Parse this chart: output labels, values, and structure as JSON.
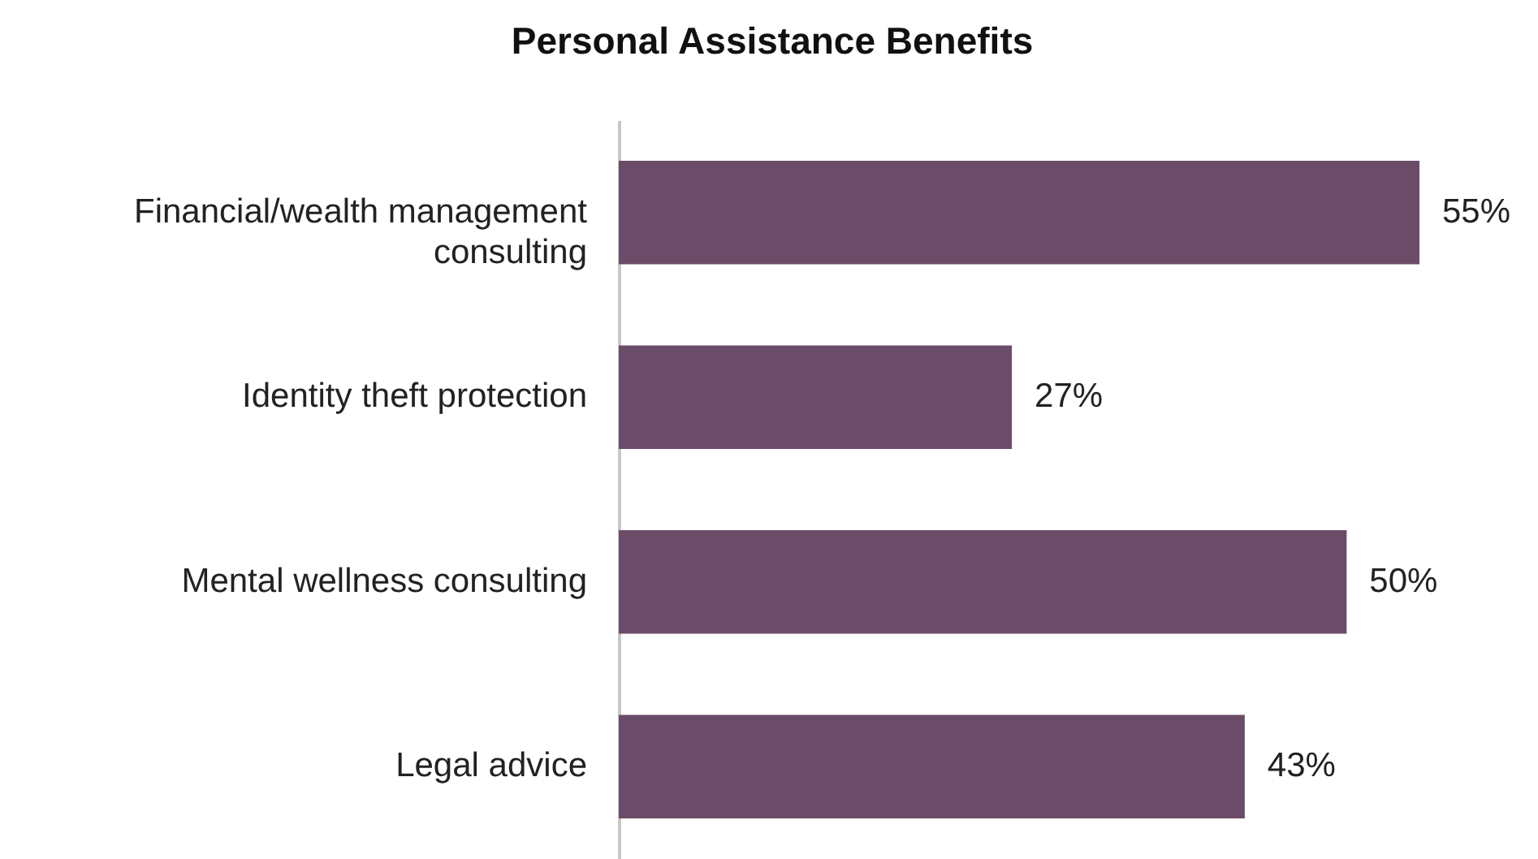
{
  "chart_data": {
    "type": "bar",
    "orientation": "horizontal",
    "title": "Personal Assistance Benefits",
    "categories": [
      "Financial/wealth management consulting",
      "Identity theft protection",
      "Mental wellness consulting",
      "Legal advice"
    ],
    "values": [
      55,
      27,
      50,
      43
    ],
    "value_labels": [
      "55%",
      "27%",
      "50%",
      "43%"
    ],
    "color": "#6b4c68"
  }
}
